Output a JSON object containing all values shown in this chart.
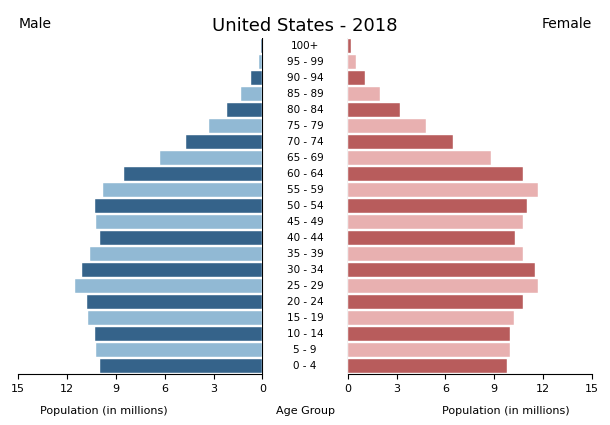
{
  "title": "United States - 2018",
  "age_groups": [
    "0 - 4",
    "5 - 9",
    "10 - 14",
    "15 - 19",
    "20 - 24",
    "25 - 29",
    "30 - 34",
    "35 - 39",
    "40 - 44",
    "45 - 49",
    "50 - 54",
    "55 - 59",
    "60 - 64",
    "65 - 69",
    "70 - 74",
    "75 - 79",
    "80 - 84",
    "85 - 89",
    "90 - 94",
    "95 - 99",
    "100+"
  ],
  "male": [
    10.0,
    10.2,
    10.3,
    10.7,
    10.8,
    11.5,
    11.1,
    10.6,
    10.0,
    10.2,
    10.3,
    9.8,
    8.5,
    6.3,
    4.7,
    3.3,
    2.2,
    1.3,
    0.7,
    0.2,
    0.08
  ],
  "female": [
    9.8,
    10.0,
    10.0,
    10.2,
    10.8,
    11.7,
    11.5,
    10.8,
    10.3,
    10.8,
    11.0,
    11.7,
    10.8,
    8.8,
    6.5,
    4.8,
    3.2,
    2.0,
    1.05,
    0.5,
    0.18
  ],
  "male_dark": "#35638a",
  "male_light": "#91b9d4",
  "female_dark": "#b85c5c",
  "female_light": "#e8b0b0",
  "xlim": 15,
  "xlabel_left": "Population (in millions)",
  "xlabel_center": "Age Group",
  "xlabel_right": "Population (in millions)",
  "label_male": "Male",
  "label_female": "Female",
  "background_color": "#ffffff",
  "title_fontsize": 13,
  "label_fontsize": 10,
  "tick_fontsize": 8,
  "age_label_fontsize": 7.5
}
